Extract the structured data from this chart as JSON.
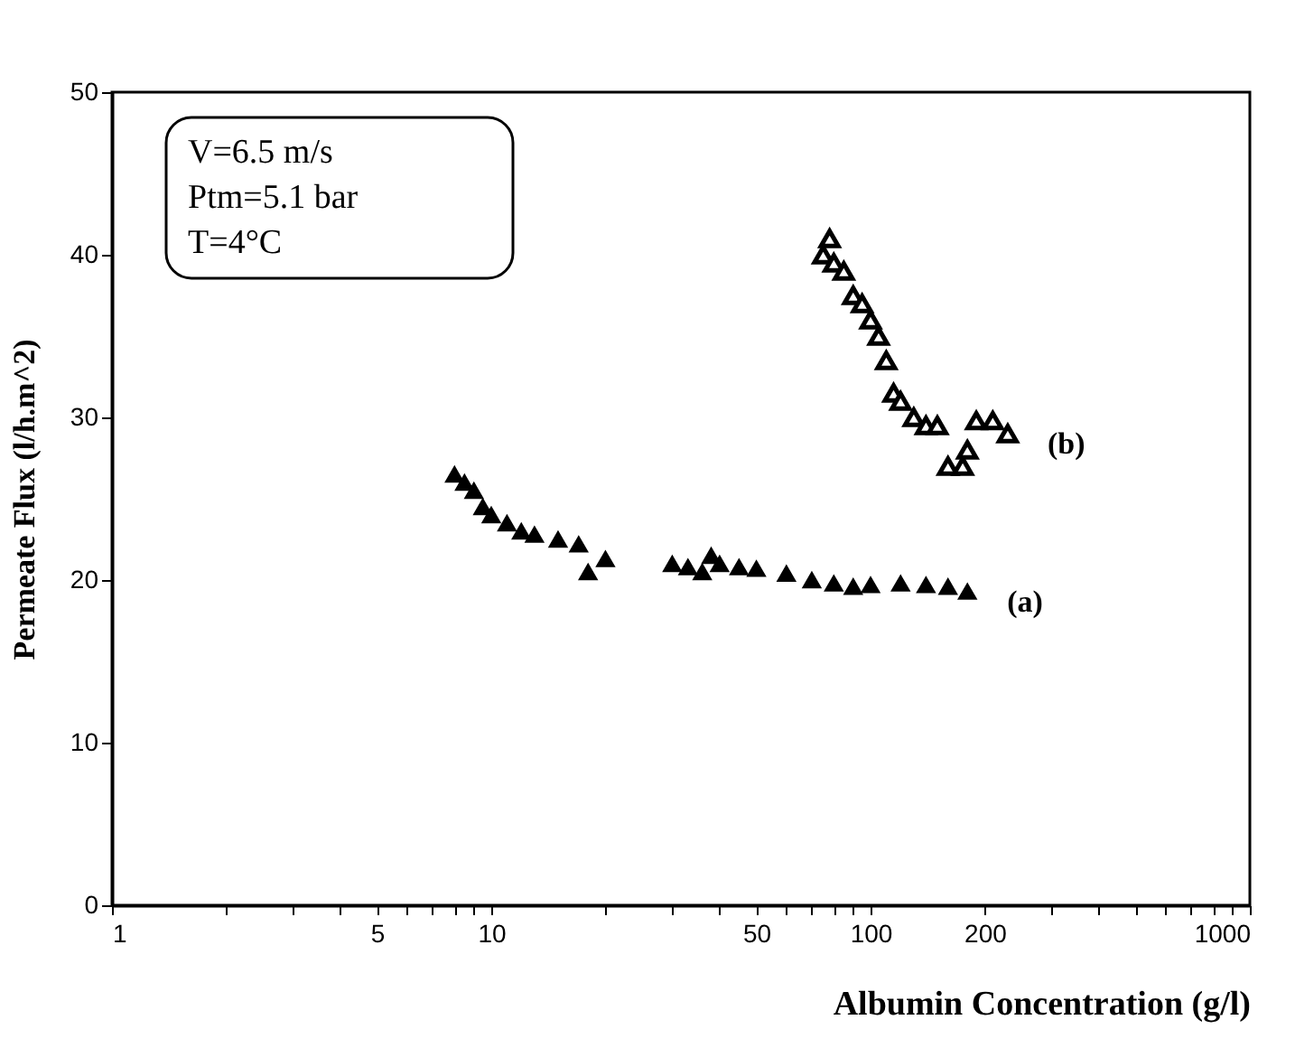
{
  "chart_data": {
    "type": "scatter",
    "xlabel": "Albumin Concentration  (g/l)",
    "ylabel": "Permeate Flux  (l/h.m^2)",
    "log": "x",
    "xlim": [
      1,
      1000
    ],
    "ylim": [
      0,
      50
    ],
    "xticks": [
      1,
      {
        "value": 2,
        "label": null
      },
      {
        "value": 3,
        "label": null
      },
      {
        "value": 4,
        "label": null
      },
      5,
      {
        "value": 6,
        "label": null
      },
      {
        "value": 7,
        "label": null
      },
      {
        "value": 8,
        "label": null
      },
      {
        "value": 9,
        "label": null
      },
      10,
      {
        "value": 20,
        "label": null
      },
      {
        "value": 30,
        "label": null
      },
      {
        "value": 40,
        "label": null
      },
      50,
      {
        "value": 60,
        "label": null
      },
      {
        "value": 70,
        "label": null
      },
      {
        "value": 80,
        "label": null
      },
      {
        "value": 90,
        "label": null
      },
      100,
      200,
      {
        "value": 300,
        "label": null
      },
      {
        "value": 400,
        "label": null
      },
      {
        "value": 500,
        "label": null
      },
      {
        "value": 600,
        "label": null
      },
      {
        "value": 700,
        "label": null
      },
      {
        "value": 800,
        "label": null
      },
      {
        "value": 900,
        "label": null
      },
      1000
    ],
    "yticks": [
      0,
      10,
      20,
      30,
      40,
      50
    ],
    "grid": false,
    "legend": false,
    "marker": "triangle",
    "annotations": [
      "V=6.5  m/s",
      "Ptm=5.1 bar",
      "T=4°C"
    ],
    "series": [
      {
        "name": "(a)",
        "color": "#000000",
        "x": [
          8,
          8.5,
          9,
          9.5,
          10,
          11,
          12,
          13,
          15,
          17,
          18,
          20,
          30,
          33,
          36,
          38,
          40,
          45,
          50,
          60,
          70,
          80,
          90,
          100,
          120,
          140,
          160,
          180
        ],
        "values": [
          26.5,
          26,
          25.5,
          24.5,
          24,
          23.5,
          23,
          22.8,
          22.5,
          22.2,
          20.5,
          21.3,
          21,
          20.8,
          20.5,
          21.5,
          21,
          20.8,
          20.7,
          20.4,
          20,
          19.8,
          19.6,
          19.7,
          19.8,
          19.7,
          19.6,
          19.3
        ]
      },
      {
        "name": "(b)",
        "color": "#000000",
        "x": [
          75,
          78,
          80,
          85,
          90,
          95,
          100,
          105,
          110,
          115,
          120,
          130,
          140,
          150,
          160,
          175,
          180,
          190,
          210,
          230
        ],
        "values": [
          40,
          41,
          39.5,
          39,
          37.5,
          37,
          36,
          35,
          33.5,
          31.5,
          31,
          30,
          29.5,
          29.5,
          27,
          27,
          28,
          29.8,
          29.8,
          29
        ]
      }
    ]
  }
}
